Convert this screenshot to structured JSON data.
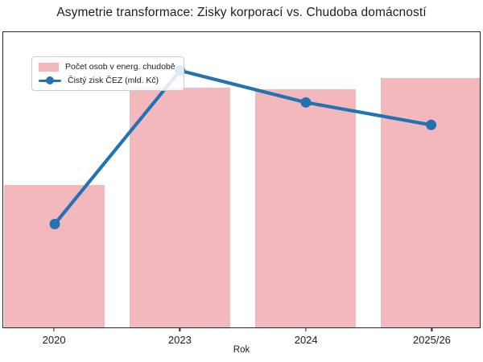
{
  "title": "Asymetrie transformace: Zisky korporací vs. Chudoba domácností",
  "chart_data": {
    "type": "bar+line combo",
    "categories": [
      "2020",
      "2023",
      "2024",
      "2025/26"
    ],
    "xlabel": "Rok",
    "series": [
      {
        "name": "Počet osob v energ. chudobě",
        "type": "bar",
        "color": "#f2b8bc",
        "values_pct_of_plot_height": [
          48.1,
          81.2,
          80.6,
          84.5
        ]
      },
      {
        "name": "Čistý zisk ČEZ (mld. Kč)",
        "type": "line",
        "color": "#2272b4",
        "values_pct_of_plot_height": [
          35.0,
          87.0,
          76.2,
          68.6
        ]
      }
    ],
    "y_axis_ticks": "none visible (unlabeled dual axes)",
    "grid": "off",
    "legend_position": "upper left",
    "category_centers_pct": [
      10.8,
      37.1,
      63.5,
      89.8
    ],
    "bar_width_pct": 21.1
  },
  "colors": {
    "spine": "#262626",
    "text": "#1c1c1c",
    "legend_border": "#cccccc"
  }
}
